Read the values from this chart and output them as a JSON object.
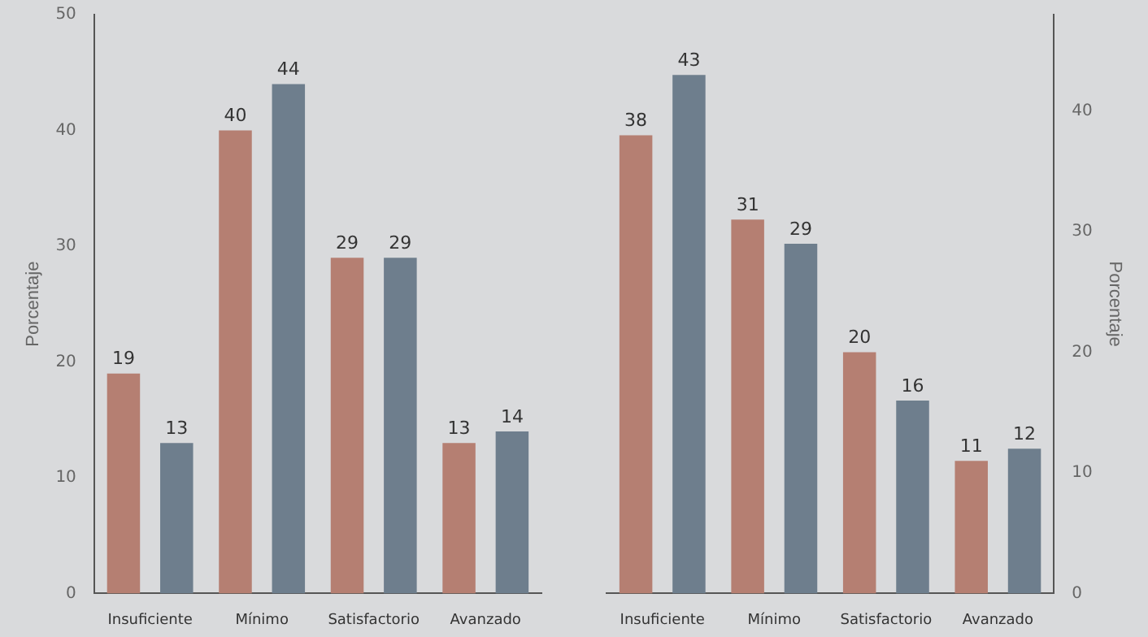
{
  "chart_data": [
    {
      "type": "bar",
      "ylabel": "Porcentaje",
      "categories": [
        "Insuficiente",
        "Mínimo",
        "Satisfactorio",
        "Avanzado"
      ],
      "series": [
        {
          "color": "#b57f72",
          "values": [
            19,
            40,
            29,
            13
          ]
        },
        {
          "color": "#6e7e8d",
          "values": [
            13,
            44,
            29,
            14
          ]
        }
      ],
      "ylim": [
        0,
        50
      ],
      "yticks": [
        0,
        10,
        20,
        30,
        40,
        50
      ],
      "grid": false,
      "legend": false,
      "data_labels": true
    },
    {
      "type": "bar",
      "y2label": "Porcentaje",
      "categories": [
        "Insuficiente",
        "Mínimo",
        "Satisfactorio",
        "Avanzado"
      ],
      "series": [
        {
          "color": "#b57f72",
          "values": [
            38,
            31,
            20,
            11
          ],
          "axis": "y2"
        },
        {
          "color": "#6e7e8d",
          "values": [
            43,
            29,
            16,
            12
          ],
          "axis": "y2"
        }
      ],
      "y2lim": [
        0,
        48
      ],
      "y2ticks": [
        0,
        10,
        20,
        30,
        40
      ],
      "grid": false,
      "legend": false,
      "data_labels": true
    }
  ]
}
